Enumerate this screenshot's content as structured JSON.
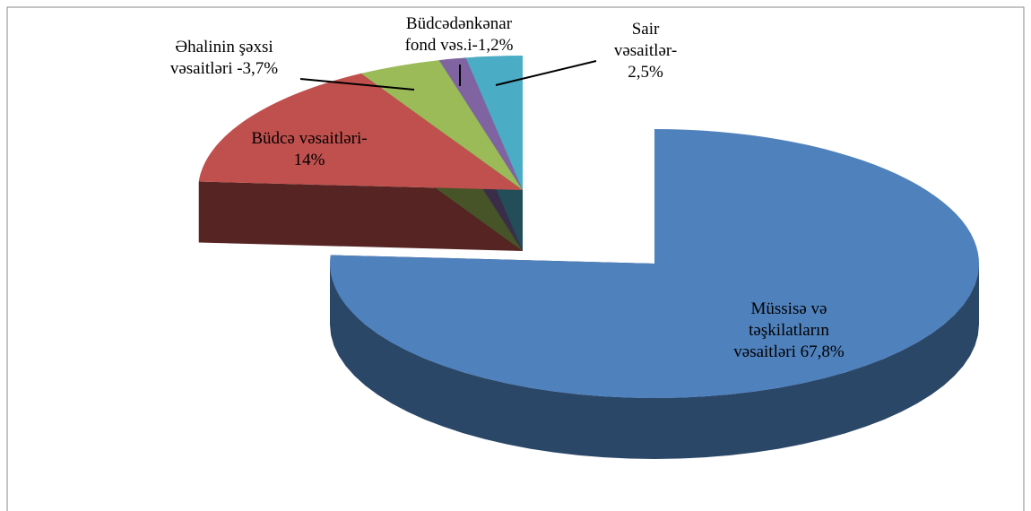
{
  "chart_data": {
    "type": "pie",
    "values": [
      67.8,
      14,
      3.7,
      1.2,
      2.5
    ],
    "value_labels": [
      "Müssisə və\ntəşkilatların\nvəsaitləri 67,8%",
      "Büdcə vəsaitləri-\n14%",
      "Əhalinin şəxsi\nvəsaitləri -3,7%",
      "Büdcədənkənar\nfond vəs.i-1,2%",
      "Sair\nvəsaitlər-\n2,5%"
    ],
    "colors": [
      "#4f81bd",
      "#c0504d",
      "#9bbb59",
      "#8064a2",
      "#4bacc6"
    ]
  }
}
